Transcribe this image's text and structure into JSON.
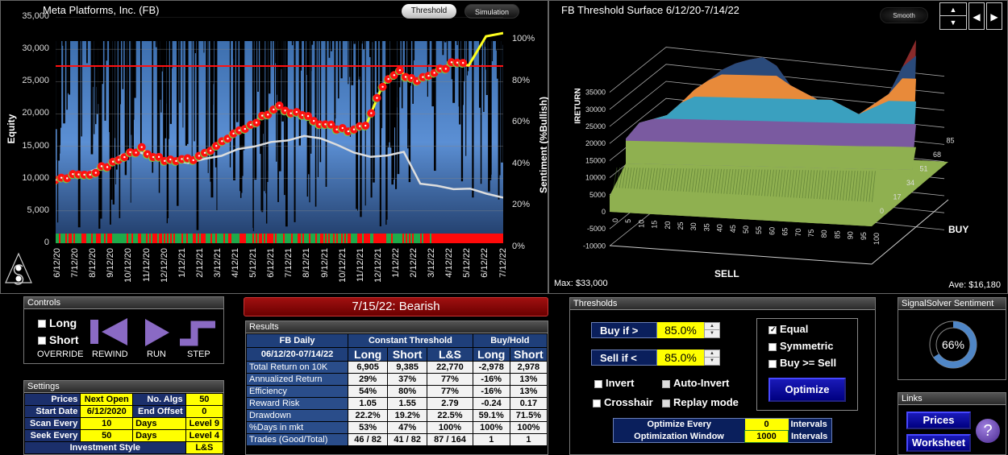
{
  "equity_chart": {
    "title": "Meta Platforms, Inc. (FB)",
    "buttons": {
      "threshold": "Threshold",
      "simulation": "Simulation"
    },
    "y_left_label": "Equity",
    "y_right_label": "Sentiment (%Bullish)",
    "y_left_ticks": [
      "35,000",
      "30,000",
      "25,000",
      "20,000",
      "15,000",
      "10,000",
      "5,000",
      "0"
    ],
    "y_right_ticks": [
      "100%",
      "80%",
      "60%",
      "40%",
      "20%",
      "0%"
    ],
    "x_ticks": [
      "6/12/20",
      "7/12/20",
      "8/12/20",
      "9/12/20",
      "10/12/20",
      "11/12/20",
      "12/12/20",
      "1/12/21",
      "2/12/21",
      "3/12/21",
      "4/12/21",
      "5/12/21",
      "6/12/21",
      "7/12/21",
      "8/12/21",
      "9/12/21",
      "10/12/21",
      "11/12/21",
      "12/12/21",
      "1/12/22",
      "2/12/22",
      "3/12/22",
      "4/12/22",
      "5/12/22",
      "6/12/22",
      "7/12/22"
    ],
    "threshold_pct": 85
  },
  "surface_chart": {
    "title": "FB Threshold Surface  6/12/20-7/14/22",
    "smooth_button": "Smooth",
    "z_label": "IRETURN",
    "z_ticks": [
      "35000",
      "30000",
      "25000",
      "20000",
      "15000",
      "10000",
      "5000",
      "0",
      "-5000",
      "-10000"
    ],
    "sell_ticks": [
      "0",
      "5",
      "10",
      "15",
      "20",
      "25",
      "30",
      "35",
      "40",
      "45",
      "50",
      "55",
      "60",
      "65",
      "70",
      "75",
      "80",
      "85",
      "90",
      "95",
      "100"
    ],
    "buy_ticks": [
      "0",
      "17",
      "34",
      "51",
      "68",
      "85"
    ],
    "sell_label": "SELL",
    "buy_label": "BUY",
    "max_text": "Max: $33,000",
    "ave_text": "Ave: $16,180",
    "band_colors": [
      "#8fb050",
      "#7a5aa0",
      "#3aa0bf",
      "#e88a3a",
      "#2a4a7a",
      "#8a2a2a"
    ]
  },
  "controls": {
    "header": "Controls",
    "long": "Long",
    "short": "Short",
    "override": "OVERRIDE",
    "rewind": "REWIND",
    "run": "RUN",
    "step": "STEP"
  },
  "settings": {
    "header": "Settings",
    "prices_label": "Prices",
    "prices_value": "Next Open",
    "algs_label": "No. Algs",
    "algs_value": "50",
    "start_label": "Start Date",
    "start_value": "6/12/2020",
    "offset_label": "End Offset",
    "offset_value": "0",
    "scan_label": "Scan Every",
    "scan_value": "10",
    "scan_unit": "Days",
    "scan_level": "Level 9",
    "seek_label": "Seek Every",
    "seek_value": "50",
    "seek_unit": "Days",
    "seek_level": "Level 4",
    "style_label": "Investment Style",
    "style_value": "L&S"
  },
  "banner": "7/15/22:  Bearish",
  "results": {
    "header": "Results",
    "col_title": "FB Daily",
    "date_range": "06/12/20-07/14/22",
    "group1": "Constant Threshold",
    "group2": "Buy/Hold",
    "cols": [
      "Long",
      "Short",
      "L&S",
      "Long",
      "Short"
    ],
    "rows": [
      {
        "label": "Total Return on 10K",
        "values": [
          "6,905",
          "9,385",
          "22,770",
          "-2,978",
          "2,978"
        ]
      },
      {
        "label": "Annualized Return",
        "values": [
          "29%",
          "37%",
          "77%",
          "-16%",
          "13%"
        ]
      },
      {
        "label": "Efficiency",
        "values": [
          "54%",
          "80%",
          "77%",
          "-16%",
          "13%"
        ]
      },
      {
        "label": "Reward Risk",
        "values": [
          "1.05",
          "1.55",
          "2.79",
          "-0.24",
          "0.17"
        ]
      },
      {
        "label": "Drawdown",
        "values": [
          "22.2%",
          "19.2%",
          "22.5%",
          "59.1%",
          "71.5%"
        ]
      },
      {
        "label": "%Days in mkt",
        "values": [
          "53%",
          "47%",
          "100%",
          "100%",
          "100%"
        ]
      },
      {
        "label": "Trades (Good/Total)",
        "values": [
          "46 / 82",
          "41 / 82",
          "87 / 164",
          "1",
          "1"
        ]
      }
    ]
  },
  "thresholds": {
    "header": "Thresholds",
    "buy_label": "Buy if >",
    "buy_value": "85.0%",
    "sell_label": "Sell if <",
    "sell_value": "85.0%",
    "invert": "Invert",
    "auto_invert": "Auto-Invert",
    "crosshair": "Crosshair",
    "replay": "Replay mode",
    "equal": "Equal",
    "symmetric": "Symmetric",
    "buy_ge_sell": "Buy >= Sell",
    "optimize": "Optimize",
    "opt_every_label": "Optimize Every",
    "opt_every_value": "0",
    "opt_every_unit": "Intervals",
    "opt_window_label": "Optimization Window",
    "opt_window_value": "1000",
    "opt_window_unit": "Intervals"
  },
  "sentiment": {
    "header": "SignalSolver Sentiment",
    "value_text": "66%",
    "value": 66,
    "color": "#4f86c6"
  },
  "links": {
    "header": "Links",
    "prices": "Prices",
    "worksheet": "Worksheet",
    "help": "?"
  }
}
